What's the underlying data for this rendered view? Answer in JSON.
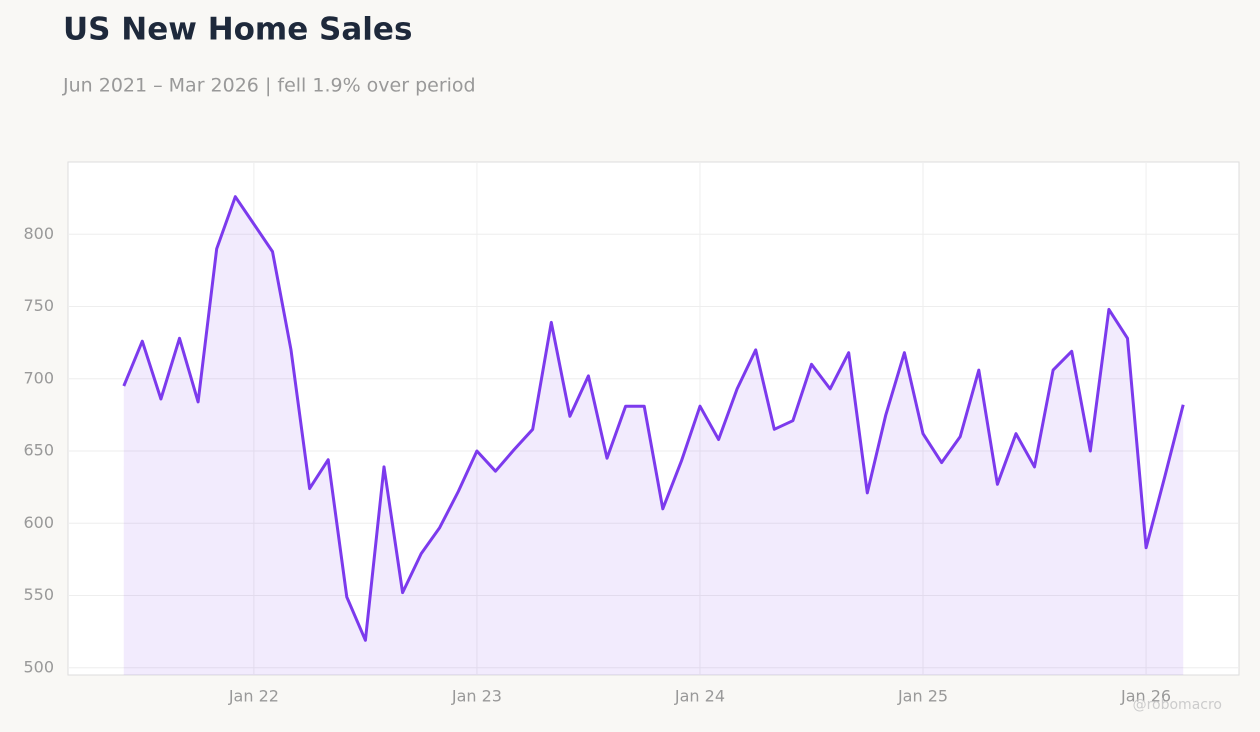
{
  "chart_data": {
    "type": "line",
    "title": "US New Home Sales",
    "subtitle": "Jun 2021 – Mar 2026 | fell 1.9% over period",
    "watermark": "@robomacro",
    "x": [
      "2021-06",
      "2021-07",
      "2021-08",
      "2021-09",
      "2021-10",
      "2021-11",
      "2021-12",
      "2022-01",
      "2022-02",
      "2022-03",
      "2022-04",
      "2022-05",
      "2022-06",
      "2022-07",
      "2022-08",
      "2022-09",
      "2022-10",
      "2022-11",
      "2022-12",
      "2023-01",
      "2023-02",
      "2023-03",
      "2023-04",
      "2023-05",
      "2023-06",
      "2023-07",
      "2023-08",
      "2023-09",
      "2023-10",
      "2023-11",
      "2023-12",
      "2024-01",
      "2024-02",
      "2024-03",
      "2024-04",
      "2024-05",
      "2024-06",
      "2024-07",
      "2024-08",
      "2024-09",
      "2024-10",
      "2024-11",
      "2024-12",
      "2025-01",
      "2025-02",
      "2025-03",
      "2025-04",
      "2025-05",
      "2025-06",
      "2025-07",
      "2025-08",
      "2025-09",
      "2025-10",
      "2025-11",
      "2025-12",
      "2026-01",
      "2026-02",
      "2026-03"
    ],
    "series": [
      {
        "name": "US New Home Sales",
        "color": "#7c3aed",
        "values": [
          695,
          726,
          686,
          728,
          684,
          790,
          826,
          807,
          788,
          720,
          624,
          644,
          549,
          519,
          639,
          552,
          579,
          597,
          622,
          650,
          636,
          651,
          665,
          739,
          674,
          702,
          645,
          681,
          681,
          610,
          643,
          681,
          658,
          693,
          720,
          665,
          671,
          710,
          693,
          718,
          621,
          675,
          718,
          662,
          642,
          660,
          706,
          627,
          662,
          639,
          706,
          719,
          650,
          748,
          728,
          583,
          632,
          682
        ]
      }
    ],
    "xlim": [
      "2021-03",
      "2026-06"
    ],
    "xticks": [
      {
        "value": "2022-01",
        "label": "Jan 22"
      },
      {
        "value": "2023-01",
        "label": "Jan 23"
      },
      {
        "value": "2024-01",
        "label": "Jan 24"
      },
      {
        "value": "2025-01",
        "label": "Jan 25"
      },
      {
        "value": "2026-01",
        "label": "Jan 26"
      }
    ],
    "ylim": [
      495,
      850
    ],
    "yticks": [
      500,
      550,
      600,
      650,
      700,
      750,
      800
    ],
    "grid": true
  }
}
